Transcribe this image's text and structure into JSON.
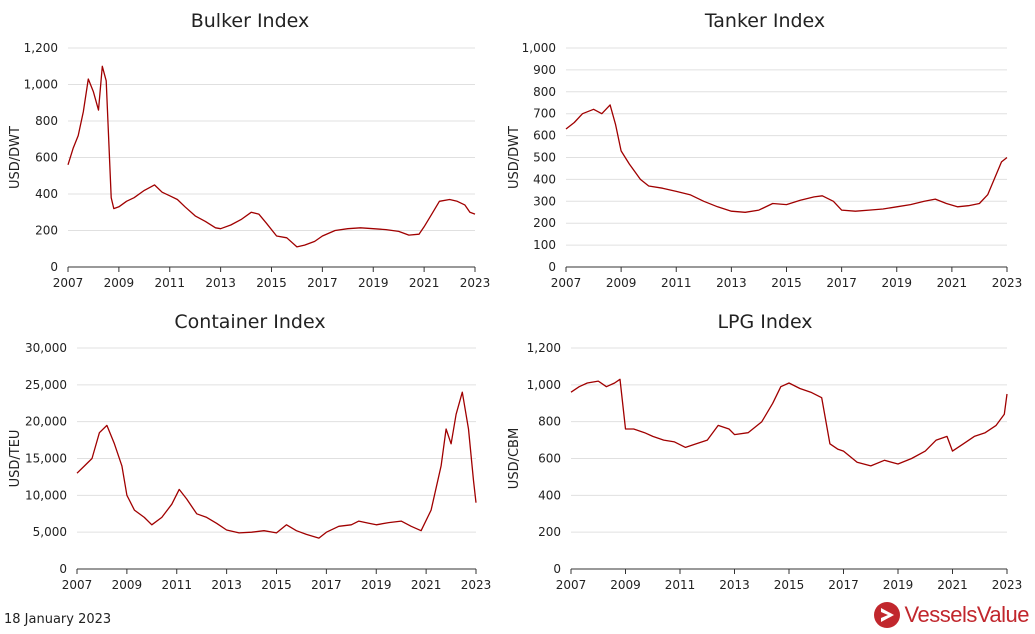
{
  "footer": {
    "date": "18 January 2023"
  },
  "brand": {
    "name": "VesselsValue",
    "color": "#c1272d"
  },
  "colors": {
    "line": "#a00000",
    "grid": "#e0e0e0",
    "axis": "#333333"
  },
  "chart_data": [
    {
      "type": "line",
      "title": "Bulker Index",
      "ylabel": "USD/DWT",
      "xlim": [
        2007,
        2023
      ],
      "xticks": [
        "2007",
        "2009",
        "2011",
        "2013",
        "2015",
        "2017",
        "2019",
        "2021",
        "2023"
      ],
      "ylim": [
        0,
        1200
      ],
      "yticks": [
        "0",
        "200",
        "400",
        "600",
        "800",
        "1,000",
        "1,200"
      ],
      "grid": true,
      "series": [
        {
          "x": [
            2007,
            2007.2,
            2007.4,
            2007.6,
            2007.8,
            2008.0,
            2008.2,
            2008.35,
            2008.5,
            2008.6,
            2008.7,
            2008.8,
            2009.0,
            2009.3,
            2009.6,
            2010.0,
            2010.4,
            2010.7,
            2011.0,
            2011.3,
            2011.6,
            2012.0,
            2012.4,
            2012.8,
            2013.0,
            2013.4,
            2013.8,
            2014.2,
            2014.5,
            2014.8,
            2015.2,
            2015.6,
            2016.0,
            2016.3,
            2016.7,
            2017.0,
            2017.5,
            2018.0,
            2018.5,
            2019.0,
            2019.5,
            2020.0,
            2020.4,
            2020.8,
            2021.0,
            2021.3,
            2021.6,
            2022.0,
            2022.3,
            2022.6,
            2022.8,
            2023.0
          ],
          "y": [
            560,
            650,
            720,
            850,
            1030,
            960,
            860,
            1100,
            1020,
            700,
            380,
            320,
            330,
            360,
            380,
            420,
            450,
            410,
            390,
            370,
            330,
            280,
            250,
            215,
            210,
            230,
            260,
            300,
            290,
            240,
            170,
            160,
            110,
            120,
            140,
            170,
            200,
            210,
            215,
            210,
            205,
            195,
            175,
            180,
            220,
            290,
            360,
            370,
            360,
            340,
            300,
            290
          ]
        }
      ]
    },
    {
      "type": "line",
      "title": "Tanker Index",
      "ylabel": "USD/DWT",
      "xlim": [
        2007,
        2023
      ],
      "xticks": [
        "2007",
        "2009",
        "2011",
        "2013",
        "2015",
        "2017",
        "2019",
        "2021",
        "2023"
      ],
      "ylim": [
        0,
        1000
      ],
      "yticks": [
        "0",
        "100",
        "200",
        "300",
        "400",
        "500",
        "600",
        "700",
        "800",
        "900",
        "1,000"
      ],
      "grid": true,
      "series": [
        {
          "x": [
            2007,
            2007.3,
            2007.6,
            2008.0,
            2008.3,
            2008.6,
            2008.8,
            2009.0,
            2009.3,
            2009.7,
            2010.0,
            2010.5,
            2011.0,
            2011.5,
            2012.0,
            2012.5,
            2013.0,
            2013.5,
            2014.0,
            2014.5,
            2015.0,
            2015.5,
            2016.0,
            2016.3,
            2016.7,
            2017.0,
            2017.5,
            2018.0,
            2018.5,
            2019.0,
            2019.5,
            2020.0,
            2020.4,
            2020.8,
            2021.2,
            2021.6,
            2022.0,
            2022.3,
            2022.6,
            2022.8,
            2023.0
          ],
          "y": [
            630,
            660,
            700,
            720,
            700,
            740,
            650,
            530,
            470,
            400,
            370,
            360,
            345,
            330,
            300,
            275,
            255,
            250,
            260,
            290,
            285,
            305,
            320,
            325,
            300,
            260,
            255,
            260,
            265,
            275,
            285,
            300,
            310,
            290,
            275,
            280,
            290,
            330,
            420,
            480,
            500
          ]
        }
      ]
    },
    {
      "type": "line",
      "title": "Container Index",
      "ylabel": "USD/TEU",
      "xlim": [
        2007,
        2023
      ],
      "xticks": [
        "2007",
        "2009",
        "2011",
        "2013",
        "2015",
        "2017",
        "2019",
        "2021",
        "2023"
      ],
      "ylim": [
        0,
        30000
      ],
      "yticks": [
        "0",
        "5,000",
        "10,000",
        "15,000",
        "20,000",
        "25,000",
        "30,000"
      ],
      "grid": true,
      "series": [
        {
          "x": [
            2007,
            2007.3,
            2007.6,
            2007.9,
            2008.2,
            2008.5,
            2008.8,
            2009.0,
            2009.3,
            2009.7,
            2010.0,
            2010.4,
            2010.8,
            2011.1,
            2011.4,
            2011.8,
            2012.2,
            2012.6,
            2013.0,
            2013.5,
            2014.0,
            2014.5,
            2015.0,
            2015.4,
            2015.8,
            2016.2,
            2016.7,
            2017.0,
            2017.5,
            2018.0,
            2018.3,
            2018.7,
            2019.0,
            2019.5,
            2020.0,
            2020.4,
            2020.8,
            2021.2,
            2021.6,
            2021.8,
            2022.0,
            2022.2,
            2022.45,
            2022.7,
            2022.9,
            2023.0
          ],
          "y": [
            13000,
            14000,
            15000,
            18500,
            19500,
            17000,
            14000,
            10000,
            8000,
            7000,
            6000,
            7000,
            8800,
            10800,
            9500,
            7500,
            7000,
            6200,
            5300,
            4900,
            5000,
            5200,
            4900,
            6000,
            5200,
            4700,
            4200,
            5000,
            5800,
            6000,
            6500,
            6200,
            6000,
            6300,
            6500,
            5800,
            5200,
            8000,
            14000,
            19000,
            17000,
            21000,
            24000,
            19000,
            12000,
            9000
          ]
        }
      ]
    },
    {
      "type": "line",
      "title": "LPG Index",
      "ylabel": "USD/CBM",
      "xlim": [
        2007,
        2023
      ],
      "xticks": [
        "2007",
        "2009",
        "2011",
        "2013",
        "2015",
        "2017",
        "2019",
        "2021",
        "2023"
      ],
      "ylim": [
        0,
        1200
      ],
      "yticks": [
        "0",
        "200",
        "400",
        "600",
        "800",
        "1,000",
        "1,200"
      ],
      "grid": true,
      "series": [
        {
          "x": [
            2007,
            2007.3,
            2007.6,
            2008.0,
            2008.3,
            2008.6,
            2008.8,
            2009.0,
            2009.3,
            2009.7,
            2010.0,
            2010.4,
            2010.8,
            2011.2,
            2011.6,
            2012.0,
            2012.4,
            2012.8,
            2013.0,
            2013.5,
            2014.0,
            2014.4,
            2014.7,
            2015.0,
            2015.4,
            2015.8,
            2016.2,
            2016.5,
            2016.8,
            2017.0,
            2017.5,
            2018.0,
            2018.5,
            2019.0,
            2019.5,
            2020.0,
            2020.4,
            2020.8,
            2021.0,
            2021.4,
            2021.8,
            2022.2,
            2022.6,
            2022.9,
            2023.0
          ],
          "y": [
            960,
            990,
            1010,
            1020,
            990,
            1010,
            1030,
            760,
            760,
            740,
            720,
            700,
            690,
            660,
            680,
            700,
            780,
            760,
            730,
            740,
            800,
            900,
            990,
            1010,
            980,
            960,
            930,
            680,
            650,
            640,
            580,
            560,
            590,
            570,
            600,
            640,
            700,
            720,
            640,
            680,
            720,
            740,
            780,
            840,
            950
          ]
        }
      ]
    }
  ]
}
